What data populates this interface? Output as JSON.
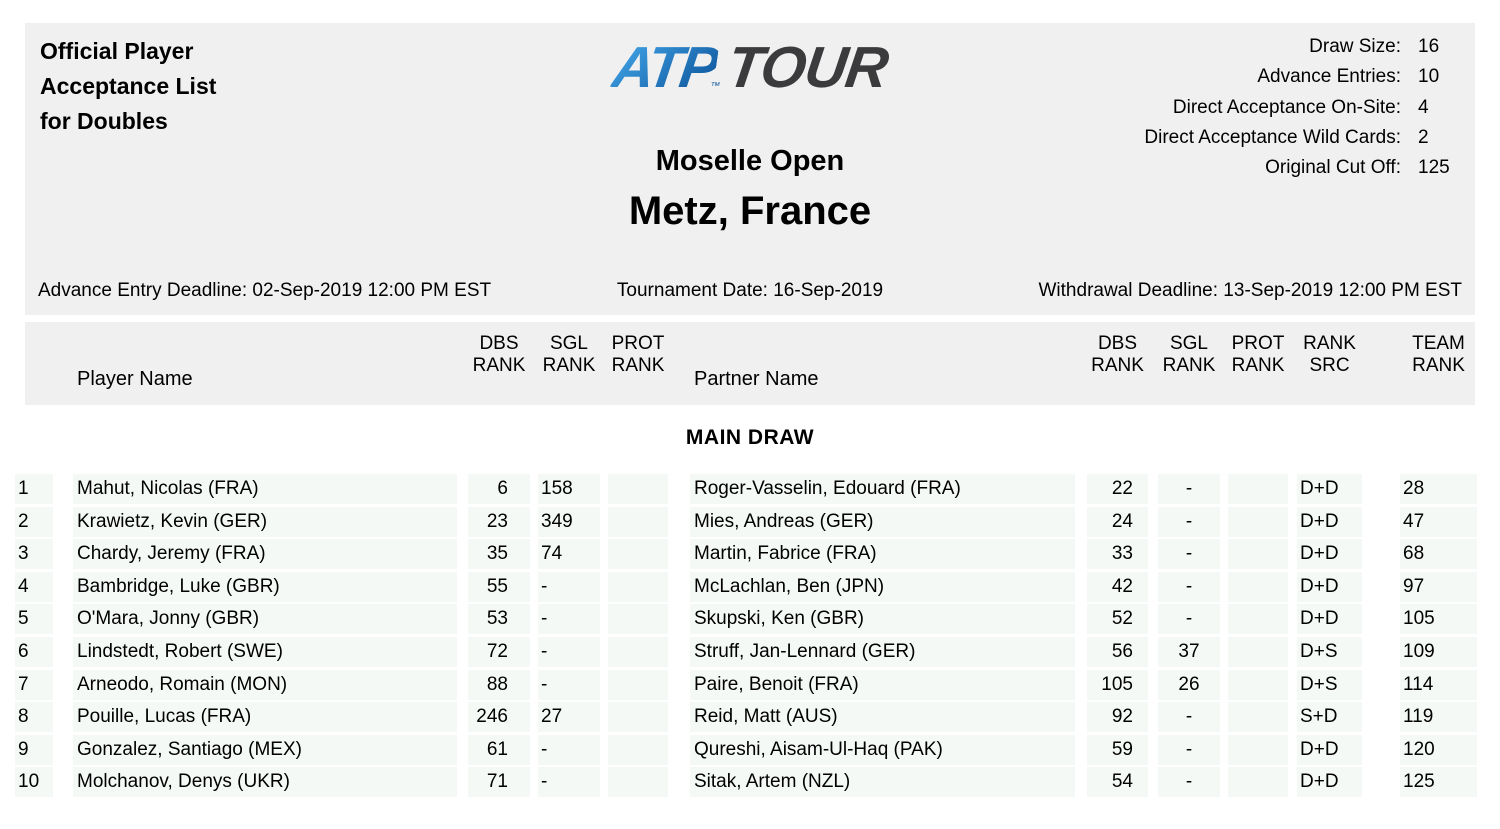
{
  "colors": {
    "band": "#f0f0f0",
    "stripe": "#f5f9f6",
    "text": "#000000",
    "logo_blue_light": "#3fa0e3",
    "logo_blue_dark": "#10589f",
    "logo_dark": "#3b3b3d"
  },
  "header": {
    "title_lines": [
      "Official Player",
      "Acceptance List",
      "for Doubles"
    ],
    "logo": {
      "atp": "ATP",
      "tm": "™",
      "tour": "TOUR"
    },
    "tournament": {
      "name": "Moselle Open",
      "location": "Metz, France"
    },
    "stats": [
      {
        "label": "Draw Size:",
        "value": "16"
      },
      {
        "label": "Advance Entries:",
        "value": "10"
      },
      {
        "label": "Direct Acceptance On-Site:",
        "value": "4"
      },
      {
        "label": "Direct Acceptance Wild Cards:",
        "value": "2"
      },
      {
        "label": "Original Cut Off:",
        "value": "125"
      }
    ],
    "deadlines": {
      "advance_entry": "Advance Entry Deadline: 02-Sep-2019 12:00 PM EST",
      "tournament_date": "Tournament Date: 16-Sep-2019",
      "withdrawal": "Withdrawal Deadline: 13-Sep-2019 12:00 PM EST"
    }
  },
  "table": {
    "section_title": "MAIN DRAW",
    "headers": {
      "player_name": "Player Name",
      "dbs_rank": "DBS\nRANK",
      "sgl_rank": "SGL\nRANK",
      "prot_rank": "PROT\nRANK",
      "partner_name": "Partner Name",
      "p_dbs_rank": "DBS\nRANK",
      "p_sgl_rank": "SGL\nRANK",
      "p_prot_rank": "PROT\nRANK",
      "rank_src": "RANK\nSRC",
      "team_rank": "TEAM\nRANK"
    },
    "rows": [
      {
        "num": "1",
        "player": "Mahut, Nicolas (FRA)",
        "dbs": "6",
        "sgl": "158",
        "prot": "",
        "partner": "Roger-Vasselin, Edouard (FRA)",
        "p_dbs": "22",
        "p_sgl": "-",
        "p_prot": "",
        "rank_src": "D+D",
        "team_rank": "28"
      },
      {
        "num": "2",
        "player": "Krawietz, Kevin (GER)",
        "dbs": "23",
        "sgl": "349",
        "prot": "",
        "partner": "Mies, Andreas (GER)",
        "p_dbs": "24",
        "p_sgl": "-",
        "p_prot": "",
        "rank_src": "D+D",
        "team_rank": "47"
      },
      {
        "num": "3",
        "player": "Chardy, Jeremy (FRA)",
        "dbs": "35",
        "sgl": "74",
        "prot": "",
        "partner": "Martin, Fabrice (FRA)",
        "p_dbs": "33",
        "p_sgl": "-",
        "p_prot": "",
        "rank_src": "D+D",
        "team_rank": "68"
      },
      {
        "num": "4",
        "player": "Bambridge, Luke (GBR)",
        "dbs": "55",
        "sgl": "-",
        "prot": "",
        "partner": "McLachlan, Ben (JPN)",
        "p_dbs": "42",
        "p_sgl": "-",
        "p_prot": "",
        "rank_src": "D+D",
        "team_rank": "97"
      },
      {
        "num": "5",
        "player": "O'Mara, Jonny (GBR)",
        "dbs": "53",
        "sgl": "-",
        "prot": "",
        "partner": "Skupski, Ken (GBR)",
        "p_dbs": "52",
        "p_sgl": "-",
        "p_prot": "",
        "rank_src": "D+D",
        "team_rank": "105"
      },
      {
        "num": "6",
        "player": "Lindstedt, Robert (SWE)",
        "dbs": "72",
        "sgl": "-",
        "prot": "",
        "partner": "Struff, Jan-Lennard (GER)",
        "p_dbs": "56",
        "p_sgl": "37",
        "p_prot": "",
        "rank_src": "D+S",
        "team_rank": "109"
      },
      {
        "num": "7",
        "player": "Arneodo, Romain (MON)",
        "dbs": "88",
        "sgl": "-",
        "prot": "",
        "partner": "Paire, Benoit (FRA)",
        "p_dbs": "105",
        "p_sgl": "26",
        "p_prot": "",
        "rank_src": "D+S",
        "team_rank": "114"
      },
      {
        "num": "8",
        "player": "Pouille, Lucas (FRA)",
        "dbs": "246",
        "sgl": "27",
        "prot": "",
        "partner": "Reid, Matt (AUS)",
        "p_dbs": "92",
        "p_sgl": "-",
        "p_prot": "",
        "rank_src": "S+D",
        "team_rank": "119"
      },
      {
        "num": "9",
        "player": "Gonzalez, Santiago (MEX)",
        "dbs": "61",
        "sgl": "-",
        "prot": "",
        "partner": "Qureshi, Aisam-Ul-Haq (PAK)",
        "p_dbs": "59",
        "p_sgl": "-",
        "p_prot": "",
        "rank_src": "D+D",
        "team_rank": "120"
      },
      {
        "num": "10",
        "player": "Molchanov, Denys (UKR)",
        "dbs": "71",
        "sgl": "-",
        "prot": "",
        "partner": "Sitak, Artem (NZL)",
        "p_dbs": "54",
        "p_sgl": "-",
        "p_prot": "",
        "rank_src": "D+D",
        "team_rank": "125"
      }
    ]
  }
}
